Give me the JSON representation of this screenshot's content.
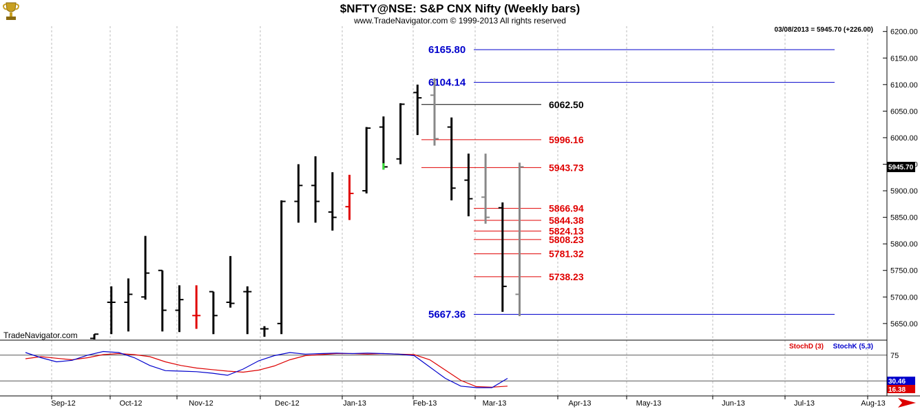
{
  "header": {
    "title": "$NFTY@NSE:  S&P CNX Nifty  (Weekly bars)",
    "copyright": "www.TradeNavigator.com © 1999-2013 All rights reserved",
    "quote": "03/08/2013 = 5945.70 (+226.00)",
    "watermark": "TradeNavigator.com",
    "last_price": "5945.70"
  },
  "colors": {
    "up_bar": "#000000",
    "current_bars": "#888888",
    "highlight_red": "#e00000",
    "highlight_green": "#33dd33",
    "blue_levels": "#0000cc",
    "red_levels": "#e00000",
    "black_level": "#000000",
    "stoch_d": "#dd0000",
    "stoch_k": "#0000cc"
  },
  "icons": {
    "logo": "trophy-icon",
    "scroll": "arrow-right-icon"
  },
  "chart_data": [
    {
      "type": "ohlc",
      "title": "$NFTY@NSE:  S&P CNX Nifty  (Weekly bars)",
      "ylim": [
        5620,
        6210
      ],
      "y_ticks": [
        "5650.00",
        "5700.00",
        "5750.00",
        "5800.00",
        "5850.00",
        "5900.00",
        "5950.00",
        "6000.00",
        "6050.00",
        "6100.00",
        "6150.00",
        "6200.00"
      ],
      "x_labels": [
        "Sep-12",
        "Oct-12",
        "Nov-12",
        "Dec-12",
        "Jan-13",
        "Feb-13",
        "Mar-13",
        "Apr-13",
        "May-13",
        "Jun-13",
        "Jul-13",
        "Aug-13"
      ],
      "bars": [
        {
          "week": 0,
          "open": 5622,
          "high": 5630,
          "low": 5620,
          "close": 5630,
          "color": "black"
        },
        {
          "week": 1,
          "open": 5690,
          "high": 5720,
          "low": 5630,
          "close": 5690,
          "color": "black"
        },
        {
          "week": 2,
          "open": 5690,
          "high": 5735,
          "low": 5635,
          "close": 5705,
          "color": "black"
        },
        {
          "week": 3,
          "open": 5700,
          "high": 5815,
          "low": 5695,
          "close": 5745,
          "color": "black"
        },
        {
          "week": 4,
          "open": 5750,
          "high": 5750,
          "low": 5635,
          "close": 5675,
          "color": "black"
        },
        {
          "week": 5,
          "open": 5675,
          "high": 5722,
          "low": 5634,
          "close": 5695,
          "color": "black"
        },
        {
          "week": 6,
          "open": 5665,
          "high": 5722,
          "low": 5640,
          "close": 5665,
          "color": "red"
        },
        {
          "week": 7,
          "open": 5710,
          "high": 5710,
          "low": 5630,
          "close": 5665,
          "color": "black"
        },
        {
          "week": 8,
          "open": 5690,
          "high": 5777,
          "low": 5680,
          "close": 5688,
          "color": "black"
        },
        {
          "week": 9,
          "open": 5710,
          "high": 5720,
          "low": 5630,
          "close": 5710,
          "color": "black"
        },
        {
          "week": 10,
          "open": 5640,
          "high": 5645,
          "low": 5625,
          "close": 5640,
          "color": "black"
        },
        {
          "week": 11,
          "open": 5650,
          "high": 5882,
          "low": 5630,
          "close": 5880,
          "color": "black"
        },
        {
          "week": 12,
          "open": 5880,
          "high": 5950,
          "low": 5840,
          "close": 5910,
          "color": "black"
        },
        {
          "week": 13,
          "open": 5910,
          "high": 5965,
          "low": 5840,
          "close": 5880,
          "color": "black"
        },
        {
          "week": 14,
          "open": 5860,
          "high": 5935,
          "low": 5825,
          "close": 5850,
          "color": "black"
        },
        {
          "week": 15,
          "open": 5870,
          "high": 5930,
          "low": 5845,
          "close": 5895,
          "color": "red"
        },
        {
          "week": 16,
          "open": 5900,
          "high": 6020,
          "low": 5895,
          "close": 6018,
          "color": "black"
        },
        {
          "week": 17,
          "open": 6020,
          "high": 6040,
          "low": 5940,
          "close": 5945,
          "color": "black"
        },
        {
          "week": 18,
          "open": 5960,
          "high": 6065,
          "low": 5950,
          "close": 6063,
          "color": "black"
        },
        {
          "week": 19,
          "open": 6085,
          "high": 6100,
          "low": 6005,
          "close": 6075,
          "color": "black"
        },
        {
          "week": 20,
          "open": 6080,
          "high": 6112,
          "low": 5985,
          "close": 5998,
          "color": "gray"
        },
        {
          "week": 21,
          "open": 6020,
          "high": 6038,
          "low": 5882,
          "close": 5905,
          "color": "black"
        },
        {
          "week": 22,
          "open": 5920,
          "high": 5970,
          "low": 5852,
          "close": 5885,
          "color": "black"
        },
        {
          "week": 23,
          "open": 5888,
          "high": 5970,
          "low": 5838,
          "close": 5850,
          "color": "gray"
        },
        {
          "week": 24,
          "open": 5868,
          "high": 5878,
          "low": 5672,
          "close": 5720,
          "color": "black"
        },
        {
          "week": 25,
          "open": 5705,
          "high": 5953,
          "low": 5664,
          "close": 5945,
          "color": "gray"
        }
      ],
      "levels": [
        {
          "label": "6165.80",
          "value": 6165.8,
          "color": "blue"
        },
        {
          "label": "6104.14",
          "value": 6104.14,
          "color": "blue"
        },
        {
          "label": "6062.50",
          "value": 6062.5,
          "color": "black"
        },
        {
          "label": "5996.16",
          "value": 5996.16,
          "color": "red"
        },
        {
          "label": "5943.73",
          "value": 5943.73,
          "color": "red"
        },
        {
          "label": "5866.94",
          "value": 5866.94,
          "color": "red"
        },
        {
          "label": "5844.38",
          "value": 5844.38,
          "color": "red"
        },
        {
          "label": "5824.13",
          "value": 5824.13,
          "color": "red"
        },
        {
          "label": "5808.23",
          "value": 5808.23,
          "color": "red"
        },
        {
          "label": "5781.32",
          "value": 5781.32,
          "color": "red"
        },
        {
          "label": "5738.23",
          "value": 5738.23,
          "color": "red"
        },
        {
          "label": "5667.36",
          "value": 5667.36,
          "color": "blue"
        }
      ]
    },
    {
      "type": "line",
      "legend": [
        "StochD (3)",
        "StochK (5,3)"
      ],
      "ylim": [
        0,
        100
      ],
      "y_ticks": [
        "75",
        "25"
      ],
      "reference_lines": [
        75,
        25
      ],
      "last_values": [
        "30.46",
        "16.38"
      ],
      "series": [
        {
          "name": "StochD (3)",
          "color": "red",
          "values": [
            68,
            72,
            69,
            66,
            70,
            76,
            78,
            76,
            72,
            62,
            55,
            50,
            47,
            44,
            42,
            46,
            54,
            66,
            74,
            76,
            78,
            78,
            77,
            78,
            77,
            76,
            66,
            46,
            26,
            14,
            13,
            15
          ]
        },
        {
          "name": "StochK (5,3)",
          "color": "blue",
          "values": [
            80,
            70,
            62,
            65,
            75,
            82,
            80,
            70,
            55,
            45,
            44,
            43,
            40,
            36,
            48,
            64,
            74,
            80,
            77,
            78,
            79,
            78,
            79,
            78,
            77,
            74,
            52,
            30,
            15,
            12,
            12,
            30
          ]
        }
      ]
    }
  ]
}
